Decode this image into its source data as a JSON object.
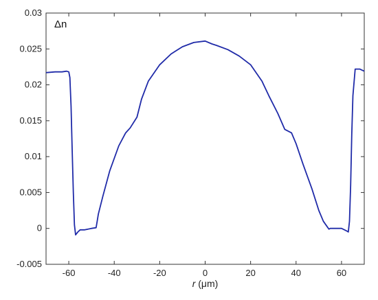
{
  "chart_data": {
    "type": "line",
    "xlabel_italic": "r",
    "xlabel_rest": " (μm)",
    "ylabel": "",
    "annotation": "Δn",
    "xlim": [
      -70,
      70
    ],
    "ylim": [
      -0.005,
      0.03
    ],
    "xticks": [
      -60,
      -40,
      -20,
      0,
      20,
      40,
      60
    ],
    "yticks": [
      -0.005,
      0,
      0.005,
      0.01,
      0.015,
      0.02,
      0.025,
      0.03
    ],
    "ytick_labels": [
      "-0.005",
      "0",
      "0.005",
      "0.01",
      "0.015",
      "0.02",
      "0.025",
      "0.03"
    ],
    "grid": false,
    "line_color": "#1f2aa8",
    "series": [
      {
        "x": [
          -70,
          -66,
          -63,
          -61,
          -60,
          -59.5,
          -59,
          -58.5,
          -58,
          -57.5,
          -57,
          -56,
          -55,
          -53,
          -50,
          -48,
          -47.5,
          -47,
          -45,
          -42,
          -38,
          -35,
          -33,
          -30,
          -28,
          -25,
          -20,
          -15,
          -10,
          -5,
          0,
          3,
          5,
          10,
          15,
          20,
          25,
          28,
          32,
          35,
          38,
          40,
          43,
          47,
          50,
          52,
          54,
          54.5,
          55,
          57,
          60,
          62,
          63,
          63.5,
          64,
          64.5,
          65,
          66,
          68,
          70
        ],
        "y": [
          0.0217,
          0.0218,
          0.0218,
          0.0219,
          0.0218,
          0.021,
          0.017,
          0.011,
          0.005,
          0.0005,
          -0.0009,
          -0.0005,
          -0.0002,
          -0.0002,
          0.0,
          0.0001,
          0.001,
          0.002,
          0.0045,
          0.008,
          0.0115,
          0.0133,
          0.014,
          0.0155,
          0.018,
          0.0205,
          0.0228,
          0.0243,
          0.0253,
          0.0259,
          0.0261,
          0.0257,
          0.0255,
          0.0249,
          0.024,
          0.0228,
          0.0205,
          0.0185,
          0.016,
          0.0138,
          0.0133,
          0.0118,
          0.009,
          0.0055,
          0.0025,
          0.001,
          0.0001,
          -0.0001,
          0.0,
          0.0,
          0.0,
          -0.0003,
          -0.0005,
          0.001,
          0.006,
          0.013,
          0.0185,
          0.0222,
          0.0222,
          0.0219
        ]
      }
    ]
  }
}
